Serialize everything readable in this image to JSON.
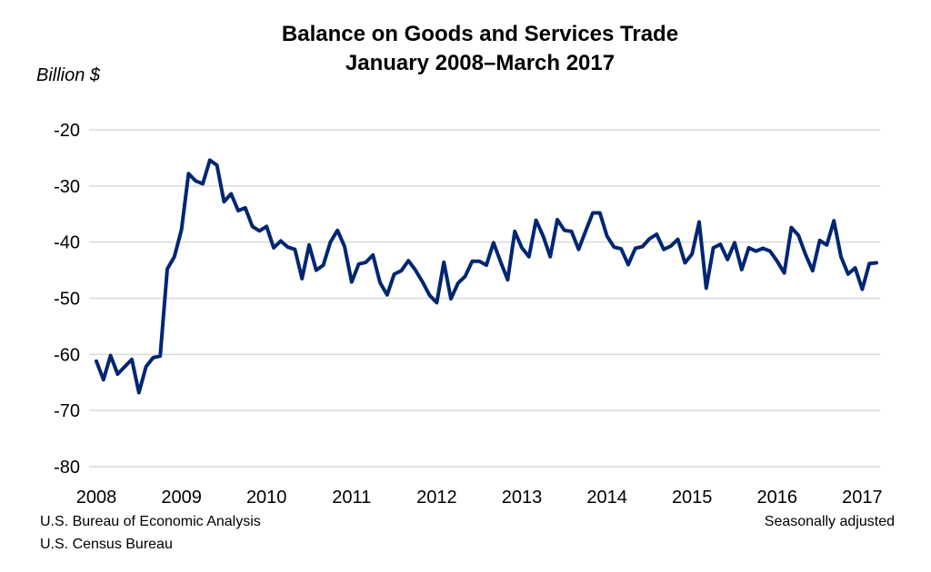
{
  "chart_data": {
    "type": "line",
    "title": "Balance on Goods and Services Trade",
    "subtitle": "January 2008–March 2017",
    "ylabel": "Billion $",
    "xlabel": "",
    "ylim": [
      -80,
      -20
    ],
    "yticks": [
      -20,
      -30,
      -40,
      -50,
      -60,
      -70,
      -80
    ],
    "xticks": [
      "2008",
      "2009",
      "2010",
      "2011",
      "2012",
      "2013",
      "2014",
      "2015",
      "2016",
      "2017"
    ],
    "grid": "horizontal",
    "frequency": "monthly",
    "x_start": "2008-01",
    "x_end": "2017-03",
    "line_color": "#002672",
    "series": [
      {
        "values": [
          -61.2,
          -64.5,
          -60.2,
          -63.5,
          -62.2,
          -60.9,
          -66.8,
          -62.2,
          -60.6,
          -60.3,
          -44.8,
          -42.6,
          -37.8,
          -27.8,
          -29.1,
          -29.6,
          -25.4,
          -26.3,
          -32.8,
          -31.4,
          -34.4,
          -33.9,
          -37.2,
          -38.0,
          -37.2,
          -41.0,
          -39.8,
          -40.9,
          -41.3,
          -46.5,
          -40.5,
          -45.0,
          -44.1,
          -40.0,
          -37.9,
          -40.8,
          -47.1,
          -43.9,
          -43.6,
          -42.3,
          -47.2,
          -49.4,
          -45.7,
          -45.1,
          -43.3,
          -45.0,
          -47.1,
          -49.5,
          -50.8,
          -43.6,
          -50.1,
          -47.3,
          -46.1,
          -43.4,
          -43.4,
          -44.1,
          -40.1,
          -43.5,
          -46.7,
          -38.1,
          -41.0,
          -42.6,
          -36.1,
          -38.9,
          -42.6,
          -36.0,
          -37.9,
          -38.1,
          -41.3,
          -38.0,
          -34.8,
          -34.8,
          -38.9,
          -40.9,
          -41.2,
          -44.0,
          -41.1,
          -40.8,
          -39.4,
          -38.6,
          -41.3,
          -40.7,
          -39.5,
          -43.7,
          -42.1,
          -36.4,
          -48.2,
          -41.0,
          -40.4,
          -43.1,
          -40.1,
          -44.9,
          -41.0,
          -41.6,
          -41.1,
          -41.6,
          -43.4,
          -45.5,
          -37.4,
          -38.8,
          -42.2,
          -45.1,
          -39.7,
          -40.5,
          -36.2,
          -42.6,
          -45.7,
          -44.6,
          -48.4,
          -43.8,
          -43.7
        ]
      }
    ]
  },
  "footer": {
    "source_1": "U.S. Bureau of Economic Analysis",
    "source_2": "U.S. Census Bureau",
    "note": "Seasonally adjusted"
  }
}
